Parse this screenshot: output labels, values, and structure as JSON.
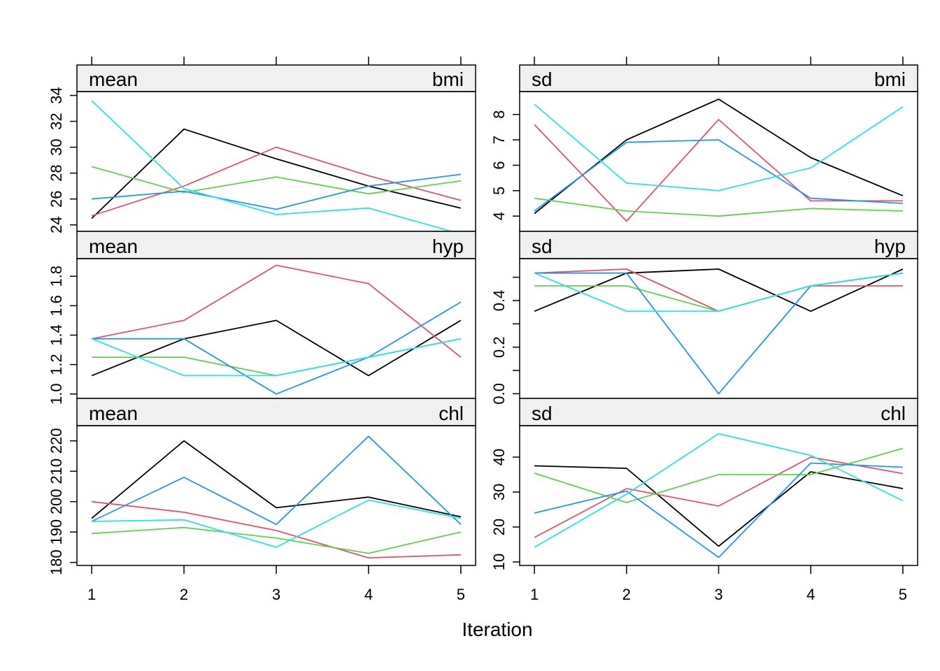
{
  "colors": {
    "series": [
      "#000000",
      "#DF536B",
      "#61D04F",
      "#2297E6",
      "#28E2E5"
    ],
    "strip_background": "#F0F0F0",
    "frame": "#000000"
  },
  "chart_data": {
    "type": "line",
    "layout": "trellis 2 columns x 3 rows",
    "xlabel": "Iteration",
    "x": [
      1,
      2,
      3,
      4,
      5
    ],
    "x_ticks": [
      "1",
      "2",
      "3",
      "4",
      "5"
    ],
    "xlim": [
      0.84,
      5.16
    ],
    "grid": false,
    "legend": "none",
    "series_count": 5,
    "panels": [
      {
        "stat": "mean",
        "variable": "bmi",
        "ylim": [
          23.5,
          34.3
        ],
        "y_ticks": [
          24,
          26,
          28,
          30,
          32,
          34
        ],
        "y_tick_labels": [
          "24",
          "26",
          "28",
          "30",
          "32",
          "34"
        ],
        "series": [
          [
            24.5,
            31.4,
            29.1,
            27.0,
            25.3
          ],
          [
            24.7,
            27.0,
            30.0,
            27.8,
            25.9
          ],
          [
            28.5,
            26.5,
            27.7,
            26.4,
            27.4
          ],
          [
            26.0,
            26.6,
            25.2,
            27.0,
            27.9
          ],
          [
            33.6,
            26.8,
            24.8,
            25.3,
            23.3
          ]
        ]
      },
      {
        "stat": "sd",
        "variable": "bmi",
        "ylim": [
          3.4,
          8.9
        ],
        "y_ticks": [
          4,
          5,
          6,
          7,
          8
        ],
        "y_tick_labels": [
          "4",
          "5",
          "6",
          "7",
          "8"
        ],
        "series": [
          [
            4.1,
            7.0,
            8.6,
            6.3,
            4.8
          ],
          [
            7.6,
            3.8,
            7.8,
            4.6,
            4.6
          ],
          [
            4.7,
            4.2,
            4.0,
            4.3,
            4.2
          ],
          [
            4.2,
            6.9,
            7.0,
            4.7,
            4.5
          ],
          [
            8.4,
            5.3,
            5.0,
            5.9,
            8.3
          ]
        ]
      },
      {
        "stat": "mean",
        "variable": "hyp",
        "ylim": [
          0.97,
          1.92
        ],
        "y_ticks": [
          1.0,
          1.2,
          1.4,
          1.6,
          1.8
        ],
        "y_tick_labels": [
          "1.0",
          "1.2",
          "1.4",
          "1.6",
          "1.8"
        ],
        "series": [
          [
            1.125,
            1.375,
            1.5,
            1.125,
            1.5
          ],
          [
            1.375,
            1.5,
            1.875,
            1.75,
            1.25
          ],
          [
            1.25,
            1.25,
            1.125,
            1.25,
            1.375
          ],
          [
            1.375,
            1.375,
            1.0,
            1.25,
            1.625
          ],
          [
            1.375,
            1.125,
            1.125,
            1.25,
            1.375
          ]
        ]
      },
      {
        "stat": "sd",
        "variable": "hyp",
        "ylim": [
          -0.02,
          0.58
        ],
        "y_ticks": [
          0.0,
          0.1,
          0.2,
          0.3,
          0.4,
          0.5
        ],
        "y_tick_labels": [
          "0.0",
          "",
          "0.2",
          "",
          "0.4",
          ""
        ],
        "series": [
          [
            0.354,
            0.518,
            0.535,
            0.354,
            0.535
          ],
          [
            0.518,
            0.535,
            0.354,
            0.463,
            0.463
          ],
          [
            0.463,
            0.463,
            0.354,
            0.463,
            0.518
          ],
          [
            0.518,
            0.518,
            0.0,
            0.463,
            0.518
          ],
          [
            0.518,
            0.354,
            0.354,
            0.463,
            0.518
          ]
        ]
      },
      {
        "stat": "mean",
        "variable": "chl",
        "ylim": [
          179,
          225
        ],
        "y_ticks": [
          180,
          190,
          200,
          210,
          220
        ],
        "y_tick_labels": [
          "180",
          "190",
          "200",
          "210",
          "220"
        ],
        "series": [
          [
            194.5,
            220.0,
            198.0,
            201.5,
            195.0
          ],
          [
            200.0,
            196.5,
            190.5,
            181.5,
            182.5
          ],
          [
            189.5,
            191.5,
            188.0,
            183.0,
            190.0
          ],
          [
            193.5,
            208.0,
            192.5,
            221.5,
            192.5
          ],
          [
            193.5,
            194.0,
            185.0,
            200.5,
            194.5
          ]
        ]
      },
      {
        "stat": "sd",
        "variable": "chl",
        "ylim": [
          9,
          49
        ],
        "y_ticks": [
          10,
          20,
          30,
          40
        ],
        "y_tick_labels": [
          "10",
          "20",
          "30",
          "40"
        ],
        "series": [
          [
            37.5,
            36.8,
            14.5,
            35.8,
            31.0
          ],
          [
            17.0,
            31.0,
            26.0,
            40.0,
            35.3
          ],
          [
            35.4,
            27.0,
            35.0,
            35.0,
            42.5
          ],
          [
            24.0,
            30.3,
            11.3,
            38.3,
            37.1
          ],
          [
            14.2,
            29.4,
            46.7,
            40.5,
            27.5
          ]
        ]
      }
    ]
  }
}
